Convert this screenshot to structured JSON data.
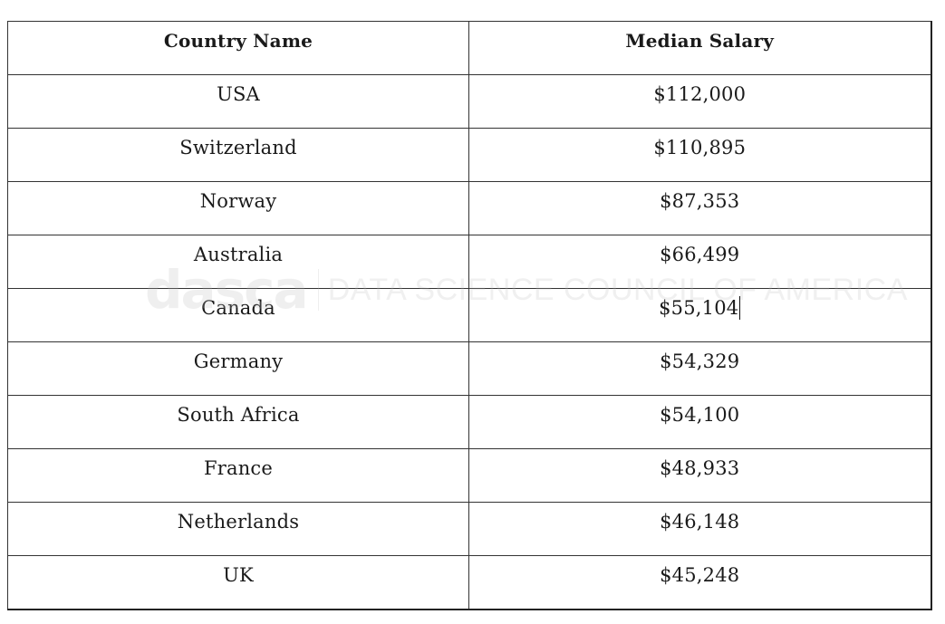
{
  "table": {
    "headers": [
      "Country Name",
      "Median Salary"
    ],
    "rows": [
      {
        "country": "USA",
        "salary": "$112,000"
      },
      {
        "country": "Switzerland",
        "salary": "$110,895"
      },
      {
        "country": "Norway",
        "salary": "$87,353"
      },
      {
        "country": "Australia",
        "salary": "$66,499"
      },
      {
        "country": "Canada",
        "salary": "$55,104"
      },
      {
        "country": "Germany",
        "salary": "$54,329"
      },
      {
        "country": "South Africa",
        "salary": "$54,100"
      },
      {
        "country": "France",
        "salary": "$48,933"
      },
      {
        "country": "Netherlands",
        "salary": "$46,148"
      },
      {
        "country": "UK",
        "salary": "$45,248"
      }
    ]
  },
  "watermark": {
    "logo": "dasca",
    "text": "DATA SCIENCE COUNCIL OF AMERICA"
  },
  "colors": {
    "border": "#333333",
    "text": "#1a1a1a",
    "watermark": "#bcbcbc"
  }
}
